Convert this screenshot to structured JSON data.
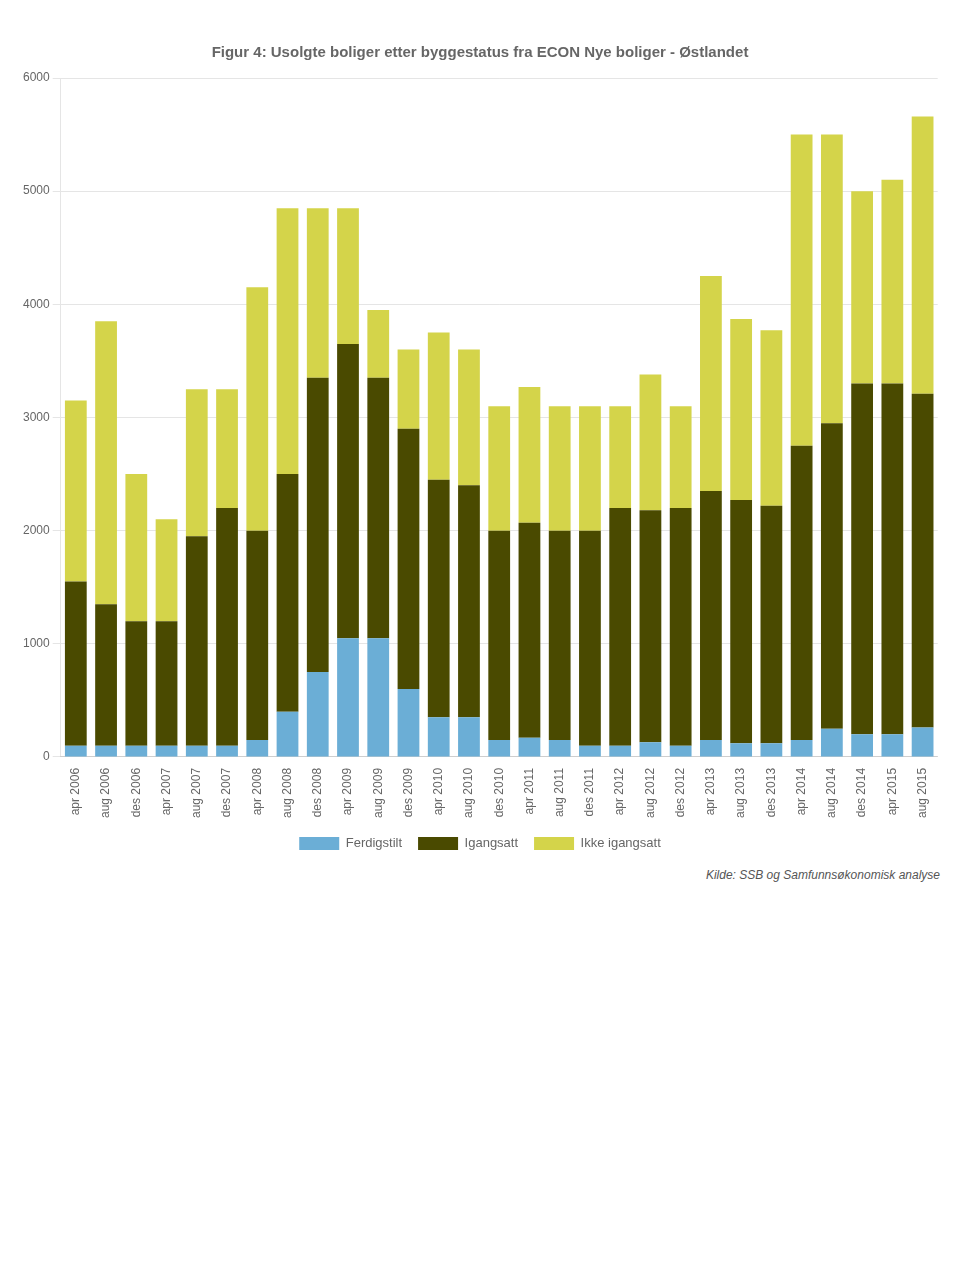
{
  "chart_data": {
    "type": "bar",
    "stacked": true,
    "title": "Figur 4: Usolgte boliger etter byggestatus fra ECON Nye boliger - Østlandet",
    "annotation": "Kilde: SSB og Samfunnsøkonomisk analyse",
    "categories": [
      "apr 2006",
      "aug 2006",
      "des 2006",
      "apr 2007",
      "aug 2007",
      "des 2007",
      "apr 2008",
      "aug 2008",
      "des 2008",
      "apr 2009",
      "aug 2009",
      "des 2009",
      "apr 2010",
      "aug 2010",
      "des 2010",
      "apr 2011",
      "aug 2011",
      "des 2011",
      "apr 2012",
      "aug 2012",
      "des 2012",
      "apr 2013",
      "aug 2013",
      "des 2013",
      "apr 2014",
      "aug 2014",
      "des 2014",
      "apr 2015",
      "aug 2015"
    ],
    "series": [
      {
        "name": "Ferdigstilt",
        "color": "#6baed6",
        "values": [
          100,
          100,
          100,
          100,
          100,
          100,
          150,
          400,
          750,
          1050,
          1050,
          600,
          350,
          350,
          150,
          170,
          150,
          100,
          100,
          130,
          100,
          150,
          120,
          120,
          150,
          250,
          200,
          200,
          260
        ]
      },
      {
        "name": "Igangsatt",
        "color": "#4a4a00",
        "values": [
          1450,
          1250,
          1100,
          1100,
          1850,
          2100,
          1850,
          2100,
          2600,
          2600,
          2300,
          2300,
          2100,
          2050,
          1850,
          1900,
          1850,
          1900,
          2100,
          2050,
          2100,
          2200,
          2150,
          2100,
          2600,
          2700,
          3100,
          3100,
          2950
        ]
      },
      {
        "name": "Ikke igangsatt",
        "color": "#d4d44a",
        "values": [
          1600,
          2500,
          1300,
          900,
          1300,
          1050,
          2150,
          2350,
          1500,
          1200,
          600,
          700,
          1300,
          1200,
          1100,
          1200,
          1100,
          1100,
          900,
          1200,
          900,
          1900,
          1600,
          1550,
          2750,
          2550,
          1700,
          1800,
          2450
        ]
      }
    ],
    "ylim": [
      0,
      6000
    ],
    "yticks": [
      0,
      1000,
      2000,
      3000,
      4000,
      5000,
      6000
    ],
    "grid": true,
    "legend": "bottom"
  }
}
